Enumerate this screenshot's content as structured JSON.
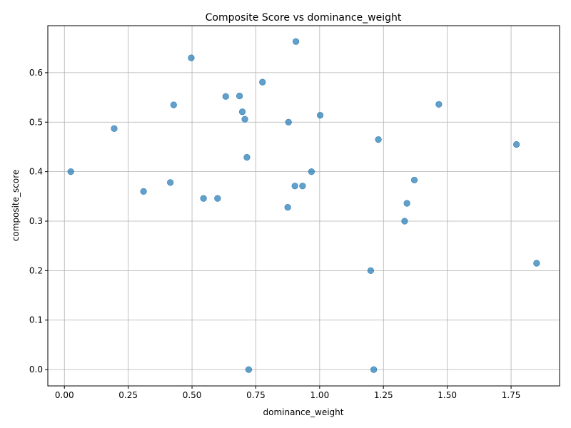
{
  "chart_data": {
    "type": "scatter",
    "title": "Composite Score vs dominance_weight",
    "xlabel": "dominance_weight",
    "ylabel": "composite_score",
    "xlim": [
      -0.065,
      1.94
    ],
    "ylim": [
      -0.033,
      0.695
    ],
    "xticks": [
      0.0,
      0.25,
      0.5,
      0.75,
      1.0,
      1.25,
      1.5,
      1.75
    ],
    "xtick_labels": [
      "0.00",
      "0.25",
      "0.50",
      "0.75",
      "1.00",
      "1.25",
      "1.50",
      "1.75"
    ],
    "yticks": [
      0.0,
      0.1,
      0.2,
      0.3,
      0.4,
      0.5,
      0.6
    ],
    "ytick_labels": [
      "0.0",
      "0.1",
      "0.2",
      "0.3",
      "0.4",
      "0.5",
      "0.6"
    ],
    "grid": true,
    "marker_color": "#1f77b4",
    "marker_alpha": 0.7,
    "points": [
      {
        "x": 0.025,
        "y": 0.4
      },
      {
        "x": 0.195,
        "y": 0.487
      },
      {
        "x": 0.31,
        "y": 0.36
      },
      {
        "x": 0.415,
        "y": 0.378
      },
      {
        "x": 0.428,
        "y": 0.535
      },
      {
        "x": 0.497,
        "y": 0.63
      },
      {
        "x": 0.545,
        "y": 0.346
      },
      {
        "x": 0.6,
        "y": 0.346
      },
      {
        "x": 0.632,
        "y": 0.552
      },
      {
        "x": 0.686,
        "y": 0.553
      },
      {
        "x": 0.697,
        "y": 0.521
      },
      {
        "x": 0.707,
        "y": 0.506
      },
      {
        "x": 0.715,
        "y": 0.429
      },
      {
        "x": 0.722,
        "y": 0.0
      },
      {
        "x": 0.776,
        "y": 0.581
      },
      {
        "x": 0.875,
        "y": 0.328
      },
      {
        "x": 0.878,
        "y": 0.5
      },
      {
        "x": 0.903,
        "y": 0.371
      },
      {
        "x": 0.907,
        "y": 0.663
      },
      {
        "x": 0.933,
        "y": 0.371
      },
      {
        "x": 0.968,
        "y": 0.4
      },
      {
        "x": 1.002,
        "y": 0.514
      },
      {
        "x": 1.2,
        "y": 0.2
      },
      {
        "x": 1.212,
        "y": 0.0
      },
      {
        "x": 1.23,
        "y": 0.465
      },
      {
        "x": 1.333,
        "y": 0.3
      },
      {
        "x": 1.342,
        "y": 0.336
      },
      {
        "x": 1.371,
        "y": 0.383
      },
      {
        "x": 1.467,
        "y": 0.536
      },
      {
        "x": 1.771,
        "y": 0.455
      },
      {
        "x": 1.85,
        "y": 0.215
      }
    ]
  }
}
